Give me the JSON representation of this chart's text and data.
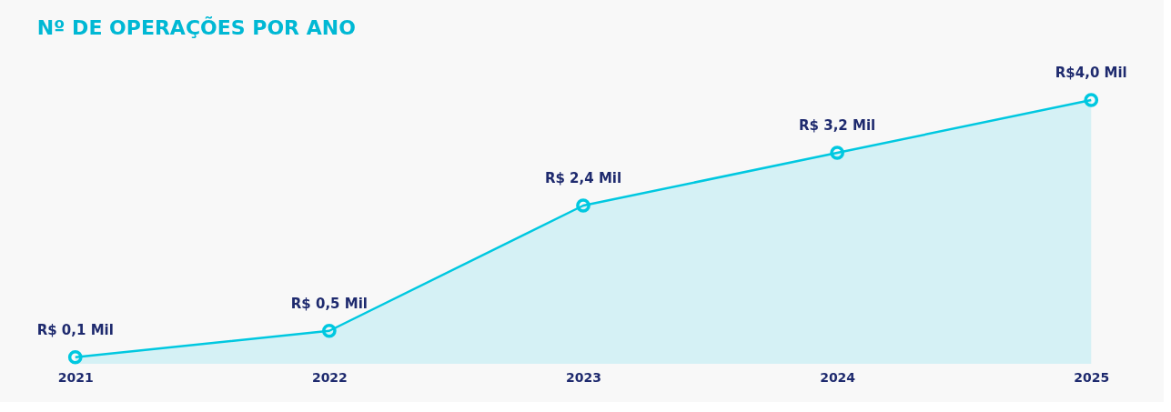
{
  "chart_data": {
    "type": "area",
    "title": "Nº DE OPERAÇÕES POR ANO",
    "categories": [
      "2021",
      "2022",
      "2023",
      "2024",
      "2025"
    ],
    "series": [
      {
        "color": "#00c8e0",
        "values": [
          0.1,
          0.5,
          2.4,
          3.2,
          4.0
        ],
        "value_labels": [
          "R$ 0,1 Mil",
          "R$ 0,5 Mil",
          "R$ 2,4 Mil",
          "R$ 3,2 Mil",
          "R$4,0 Mil"
        ]
      }
    ],
    "marker": "circle",
    "line_style": "solid"
  }
}
